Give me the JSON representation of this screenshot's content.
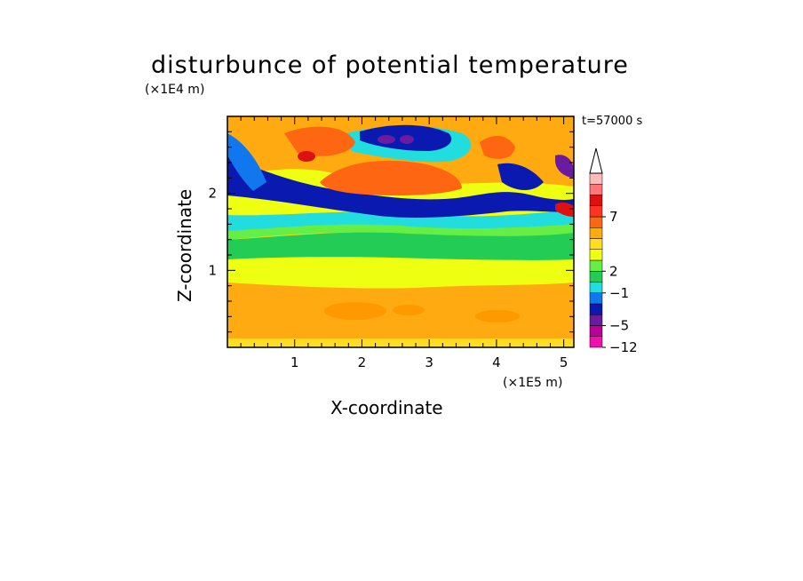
{
  "chart_data": {
    "type": "heatmap",
    "title": "disturbunce of potential temperature",
    "xlabel": "X-coordinate",
    "ylabel": "Z-coordinate",
    "x_unit": "(×1E5 m)",
    "z_unit": "(×1E4 m)",
    "time_label": "t=57000 s",
    "xlim": [
      0,
      5.15
    ],
    "ylim": [
      0,
      3.0
    ],
    "x_ticks": [
      "1",
      "2",
      "3",
      "4",
      "5"
    ],
    "x_tick_values": [
      1,
      2,
      3,
      4,
      5
    ],
    "y_ticks": [
      "1",
      "2"
    ],
    "y_tick_values": [
      1,
      2
    ],
    "colorbar": {
      "tick_labels": [
        "7",
        "2",
        "−1",
        "−5",
        "−12"
      ],
      "colors": [
        "#ee11aa",
        "#bb0099",
        "#6a1ba0",
        "#0a1ab0",
        "#1177ee",
        "#22dddd",
        "#22cc55",
        "#66ee44",
        "#eeff11",
        "#ffdd22",
        "#ffaa11",
        "#ff6611",
        "#ff3322",
        "#dd1111",
        "#ff7777",
        "#ffbbbb"
      ],
      "extend": "max"
    },
    "layers": [
      {
        "z_min": 0.0,
        "z_max": 0.15,
        "level": "yellow",
        "color": "#ffdd22"
      },
      {
        "z_min": 0.15,
        "z_max": 0.7,
        "level": "orange",
        "color": "#ffaa11"
      },
      {
        "z_min": 0.7,
        "z_max": 1.15,
        "level": "light-yellow",
        "color": "#eeff11"
      },
      {
        "z_min": 1.15,
        "z_max": 1.35,
        "level": "green",
        "color": "#22cc55"
      },
      {
        "z_min": 1.35,
        "z_max": 1.75,
        "level": "cyan",
        "color": "#22dddd"
      },
      {
        "z_min": 1.75,
        "z_max": 2.1,
        "level": "blue",
        "color": "#0a1ab0"
      },
      {
        "z_min": 2.1,
        "z_max": 3.0,
        "level": "mixed orange/yellow/blue",
        "color": "#ffaa11"
      }
    ]
  }
}
